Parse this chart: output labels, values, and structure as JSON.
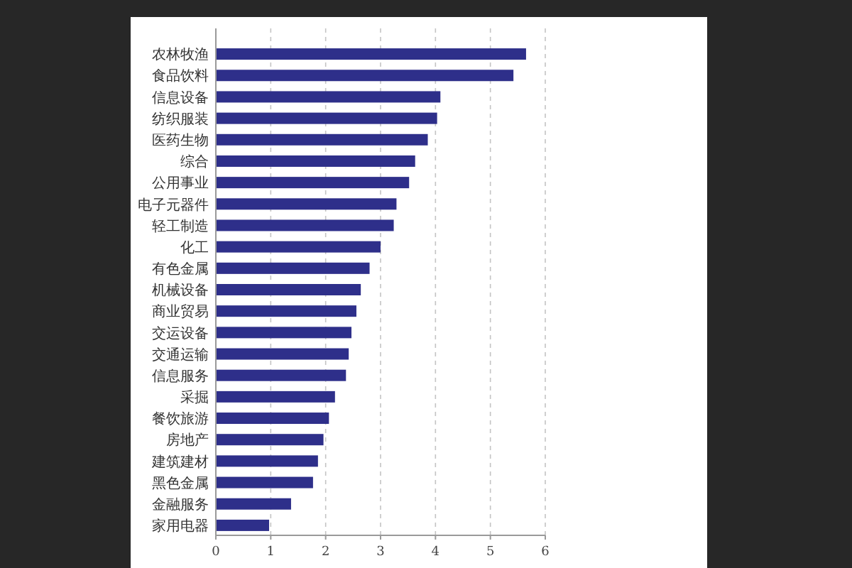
{
  "chart_data": {
    "type": "bar",
    "orientation": "horizontal",
    "categories": [
      "农林牧渔",
      "食品饮料",
      "信息设备",
      "纺织服装",
      "医药生物",
      "综合",
      "公用事业",
      "电子元器件",
      "轻工制造",
      "化工",
      "有色金属",
      "机械设备",
      "商业贸易",
      "交运设备",
      "交通运输",
      "信息服务",
      "采掘",
      "餐饮旅游",
      "房地产",
      "建筑建材",
      "黑色金属",
      "金融服务",
      "家用电器"
    ],
    "values": [
      5.65,
      5.42,
      4.09,
      4.03,
      3.86,
      3.63,
      3.52,
      3.29,
      3.24,
      3.0,
      2.8,
      2.64,
      2.56,
      2.47,
      2.42,
      2.37,
      2.17,
      2.06,
      1.96,
      1.86,
      1.77,
      1.37,
      0.97
    ],
    "color": "#2e2f8a",
    "xlim": [
      0,
      6
    ],
    "xticks": [
      0,
      1,
      2,
      3,
      4,
      5,
      6
    ],
    "grid": "x"
  }
}
